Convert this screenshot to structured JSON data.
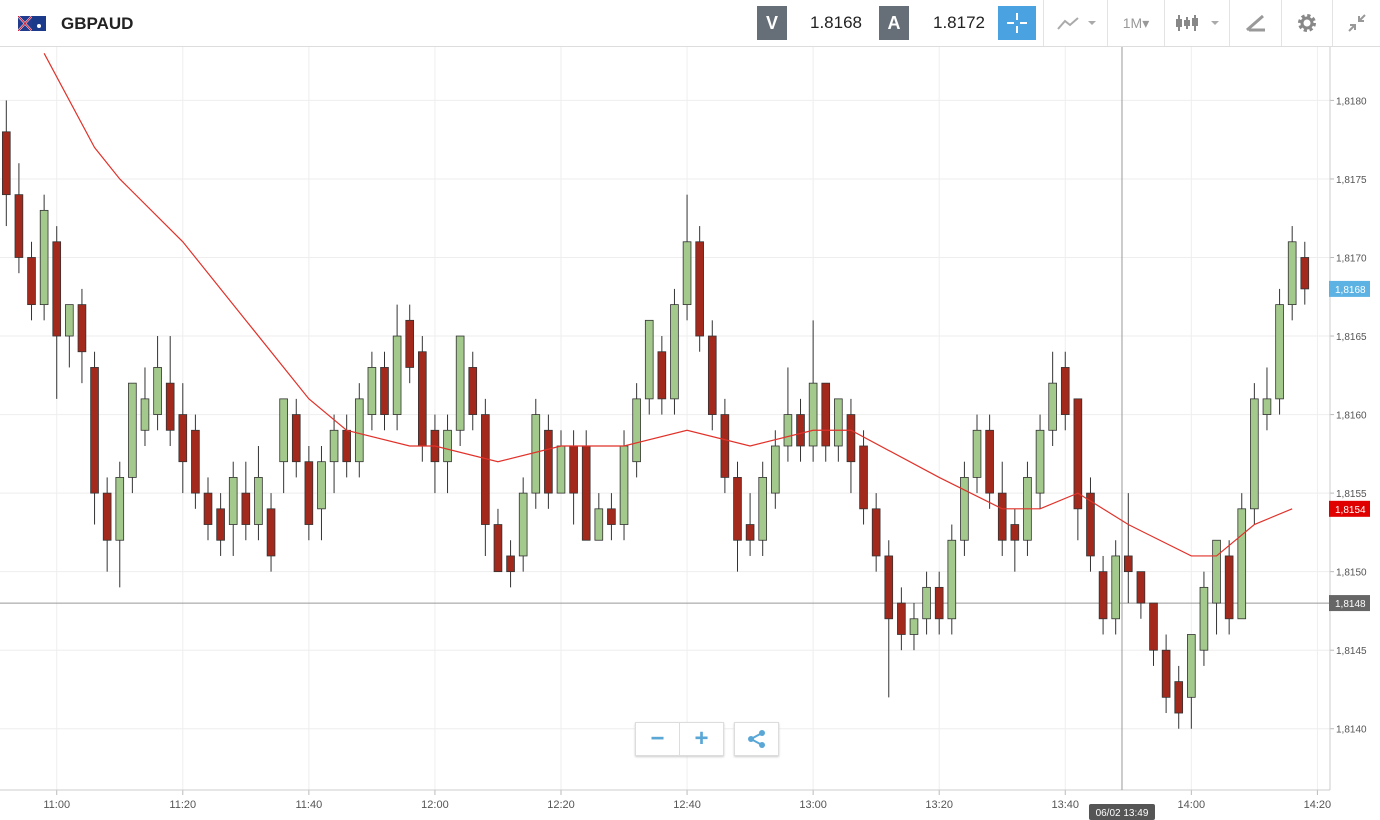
{
  "header": {
    "symbol": "GBPAUD",
    "sell_label": "V",
    "sell_price": "1.8168",
    "buy_label": "A",
    "buy_price": "1.8172",
    "timeframe": "1M"
  },
  "chart_data": {
    "type": "candlestick",
    "x": [
      "10:52",
      "10:54",
      "10:56",
      "10:58",
      "11:00",
      "11:02",
      "11:04",
      "11:06",
      "11:08",
      "11:10",
      "11:12",
      "11:14",
      "11:16",
      "11:18",
      "11:20",
      "11:22",
      "11:24",
      "11:26",
      "11:28",
      "11:30",
      "11:32",
      "11:34",
      "11:36",
      "11:38",
      "11:40",
      "11:42",
      "11:44",
      "11:46",
      "11:48",
      "11:50",
      "11:52",
      "11:54",
      "11:56",
      "11:58",
      "12:00",
      "12:02",
      "12:04",
      "12:06",
      "12:08",
      "12:10",
      "12:12",
      "12:14",
      "12:16",
      "12:18",
      "12:20",
      "12:22",
      "12:24",
      "12:26",
      "12:28",
      "12:30",
      "12:32",
      "12:34",
      "12:36",
      "12:38",
      "12:40",
      "12:42",
      "12:44",
      "12:46",
      "12:48",
      "12:50",
      "12:52",
      "12:54",
      "12:56",
      "12:58",
      "13:00",
      "13:02",
      "13:04",
      "13:06",
      "13:08",
      "13:10",
      "13:12",
      "13:14",
      "13:16",
      "13:18",
      "13:20",
      "13:22",
      "13:24",
      "13:26",
      "13:28",
      "13:30",
      "13:32",
      "13:34",
      "13:36",
      "13:38",
      "13:40",
      "13:42",
      "13:44",
      "13:46",
      "13:48",
      "13:50",
      "13:52",
      "13:54",
      "13:56",
      "13:58",
      "14:00",
      "14:02",
      "14:04",
      "14:06",
      "14:08",
      "14:10",
      "14:12",
      "14:14",
      "14:16",
      "14:18"
    ],
    "ohlc": [
      [
        1.8178,
        1.818,
        1.8172,
        1.8174
      ],
      [
        1.8174,
        1.8176,
        1.8169,
        1.817
      ],
      [
        1.817,
        1.8171,
        1.8166,
        1.8167
      ],
      [
        1.8167,
        1.8174,
        1.8166,
        1.8173
      ],
      [
        1.8171,
        1.8172,
        1.8161,
        1.8165
      ],
      [
        1.8165,
        1.8167,
        1.8163,
        1.8167
      ],
      [
        1.8167,
        1.8168,
        1.8162,
        1.8164
      ],
      [
        1.8163,
        1.8164,
        1.8153,
        1.8155
      ],
      [
        1.8155,
        1.8156,
        1.815,
        1.8152
      ],
      [
        1.8152,
        1.8157,
        1.8149,
        1.8156
      ],
      [
        1.8156,
        1.8162,
        1.8155,
        1.8162
      ],
      [
        1.8159,
        1.8163,
        1.8158,
        1.8161
      ],
      [
        1.816,
        1.8165,
        1.8159,
        1.8163
      ],
      [
        1.8162,
        1.8165,
        1.8158,
        1.8159
      ],
      [
        1.816,
        1.8162,
        1.8155,
        1.8157
      ],
      [
        1.8159,
        1.816,
        1.8154,
        1.8155
      ],
      [
        1.8155,
        1.8156,
        1.8152,
        1.8153
      ],
      [
        1.8154,
        1.8155,
        1.8151,
        1.8152
      ],
      [
        1.8153,
        1.8157,
        1.8151,
        1.8156
      ],
      [
        1.8155,
        1.8157,
        1.8152,
        1.8153
      ],
      [
        1.8153,
        1.8158,
        1.8152,
        1.8156
      ],
      [
        1.8154,
        1.8155,
        1.815,
        1.8151
      ],
      [
        1.8157,
        1.8161,
        1.8155,
        1.8161
      ],
      [
        1.816,
        1.8161,
        1.8156,
        1.8157
      ],
      [
        1.8157,
        1.8158,
        1.8152,
        1.8153
      ],
      [
        1.8154,
        1.8158,
        1.8152,
        1.8157
      ],
      [
        1.8157,
        1.816,
        1.8155,
        1.8159
      ],
      [
        1.8159,
        1.816,
        1.8156,
        1.8157
      ],
      [
        1.8157,
        1.8162,
        1.8156,
        1.8161
      ],
      [
        1.816,
        1.8164,
        1.8159,
        1.8163
      ],
      [
        1.8163,
        1.8164,
        1.8159,
        1.816
      ],
      [
        1.816,
        1.8167,
        1.8159,
        1.8165
      ],
      [
        1.8166,
        1.8167,
        1.8162,
        1.8163
      ],
      [
        1.8164,
        1.8165,
        1.8157,
        1.8158
      ],
      [
        1.8159,
        1.816,
        1.8155,
        1.8157
      ],
      [
        1.8157,
        1.816,
        1.8155,
        1.8159
      ],
      [
        1.8159,
        1.8165,
        1.8158,
        1.8165
      ],
      [
        1.8163,
        1.8164,
        1.8159,
        1.816
      ],
      [
        1.816,
        1.8161,
        1.8151,
        1.8153
      ],
      [
        1.8153,
        1.8154,
        1.815,
        1.815
      ],
      [
        1.8151,
        1.8152,
        1.8149,
        1.815
      ],
      [
        1.8151,
        1.8156,
        1.815,
        1.8155
      ],
      [
        1.8155,
        1.8161,
        1.8154,
        1.816
      ],
      [
        1.8159,
        1.816,
        1.8154,
        1.8155
      ],
      [
        1.8155,
        1.8159,
        1.8155,
        1.8158
      ],
      [
        1.8158,
        1.8159,
        1.8153,
        1.8155
      ],
      [
        1.8158,
        1.8159,
        1.8152,
        1.8152
      ],
      [
        1.8152,
        1.8155,
        1.8152,
        1.8154
      ],
      [
        1.8154,
        1.8155,
        1.8152,
        1.8153
      ],
      [
        1.8153,
        1.8159,
        1.8152,
        1.8158
      ],
      [
        1.8157,
        1.8162,
        1.8156,
        1.8161
      ],
      [
        1.8161,
        1.8166,
        1.816,
        1.8166
      ],
      [
        1.8164,
        1.8165,
        1.816,
        1.8161
      ],
      [
        1.8161,
        1.8168,
        1.816,
        1.8167
      ],
      [
        1.8167,
        1.8174,
        1.8166,
        1.8171
      ],
      [
        1.8171,
        1.8172,
        1.8164,
        1.8165
      ],
      [
        1.8165,
        1.8166,
        1.8159,
        1.816
      ],
      [
        1.816,
        1.8161,
        1.8155,
        1.8156
      ],
      [
        1.8156,
        1.8157,
        1.815,
        1.8152
      ],
      [
        1.8153,
        1.8155,
        1.8151,
        1.8152
      ],
      [
        1.8152,
        1.8157,
        1.8151,
        1.8156
      ],
      [
        1.8155,
        1.8159,
        1.8154,
        1.8158
      ],
      [
        1.8158,
        1.8163,
        1.8157,
        1.816
      ],
      [
        1.816,
        1.8161,
        1.8157,
        1.8158
      ],
      [
        1.8158,
        1.8166,
        1.8157,
        1.8162
      ],
      [
        1.8162,
        1.8162,
        1.8157,
        1.8158
      ],
      [
        1.8158,
        1.8161,
        1.8157,
        1.8161
      ],
      [
        1.816,
        1.8161,
        1.8155,
        1.8157
      ],
      [
        1.8158,
        1.8159,
        1.8153,
        1.8154
      ],
      [
        1.8154,
        1.8155,
        1.815,
        1.8151
      ],
      [
        1.8151,
        1.8152,
        1.8142,
        1.8147
      ],
      [
        1.8148,
        1.8149,
        1.8145,
        1.8146
      ],
      [
        1.8146,
        1.8148,
        1.8145,
        1.8147
      ],
      [
        1.8147,
        1.815,
        1.8146,
        1.8149
      ],
      [
        1.8149,
        1.815,
        1.8146,
        1.8147
      ],
      [
        1.8147,
        1.8153,
        1.8146,
        1.8152
      ],
      [
        1.8152,
        1.8157,
        1.8151,
        1.8156
      ],
      [
        1.8156,
        1.816,
        1.8155,
        1.8159
      ],
      [
        1.8159,
        1.816,
        1.8154,
        1.8155
      ],
      [
        1.8155,
        1.8157,
        1.8151,
        1.8152
      ],
      [
        1.8153,
        1.8154,
        1.815,
        1.8152
      ],
      [
        1.8152,
        1.8157,
        1.8151,
        1.8156
      ],
      [
        1.8155,
        1.816,
        1.8154,
        1.8159
      ],
      [
        1.8159,
        1.8164,
        1.8158,
        1.8162
      ],
      [
        1.8163,
        1.8164,
        1.8159,
        1.816
      ],
      [
        1.8161,
        1.8161,
        1.8152,
        1.8154
      ],
      [
        1.8155,
        1.8156,
        1.815,
        1.8151
      ],
      [
        1.815,
        1.8151,
        1.8146,
        1.8147
      ],
      [
        1.8147,
        1.8152,
        1.8146,
        1.8151
      ],
      [
        1.8151,
        1.8155,
        1.8148,
        1.815
      ],
      [
        1.815,
        1.815,
        1.8147,
        1.8148
      ],
      [
        1.8148,
        1.8148,
        1.8144,
        1.8145
      ],
      [
        1.8145,
        1.8146,
        1.8141,
        1.8142
      ],
      [
        1.8143,
        1.8144,
        1.814,
        1.8141
      ],
      [
        1.8142,
        1.8146,
        1.814,
        1.8146
      ],
      [
        1.8145,
        1.815,
        1.8144,
        1.8149
      ],
      [
        1.8148,
        1.8152,
        1.8146,
        1.8152
      ],
      [
        1.8151,
        1.8152,
        1.8146,
        1.8147
      ],
      [
        1.8147,
        1.8155,
        1.8147,
        1.8154
      ],
      [
        1.8154,
        1.8162,
        1.8153,
        1.8161
      ],
      [
        1.816,
        1.8163,
        1.8159,
        1.8161
      ],
      [
        1.8161,
        1.8168,
        1.816,
        1.8167
      ],
      [
        1.8167,
        1.8172,
        1.8166,
        1.8171
      ],
      [
        1.817,
        1.8171,
        1.8167,
        1.8168
      ]
    ],
    "up_color": "#a4c98c",
    "down_color": "#a3291d",
    "ma": {
      "color": "#e0322a",
      "x": [
        "10:58",
        "11:06",
        "11:10",
        "11:20",
        "11:30",
        "11:40",
        "11:46",
        "11:56",
        "12:00",
        "12:10",
        "12:20",
        "12:30",
        "12:40",
        "12:50",
        "13:00",
        "13:06",
        "13:20",
        "13:30",
        "13:36",
        "13:42",
        "13:50",
        "14:00",
        "14:04",
        "14:10",
        "14:16"
      ],
      "values": [
        1.8183,
        1.8177,
        1.8175,
        1.8171,
        1.8166,
        1.8161,
        1.8159,
        1.8158,
        1.8158,
        1.8157,
        1.8158,
        1.8158,
        1.8159,
        1.8158,
        1.8159,
        1.8159,
        1.8156,
        1.8154,
        1.8154,
        1.8155,
        1.8153,
        1.8151,
        1.8151,
        1.8153,
        1.8154
      ]
    },
    "xlim": [
      "10:51",
      "14:22"
    ],
    "ylim": [
      1.81361,
      1.81834
    ],
    "xticks": [
      "11:00",
      "11:20",
      "11:40",
      "12:00",
      "12:20",
      "12:40",
      "13:00",
      "13:20",
      "13:40",
      "14:00",
      "14:20"
    ],
    "yticks": [
      {
        "value": 1.814,
        "label": "1,8140"
      },
      {
        "value": 1.8145,
        "label": "1,8145"
      },
      {
        "value": 1.815,
        "label": "1,8150"
      },
      {
        "value": 1.8155,
        "label": "1,8155"
      },
      {
        "value": 1.816,
        "label": "1,8160"
      },
      {
        "value": 1.8165,
        "label": "1,8165"
      },
      {
        "value": 1.817,
        "label": "1,8170"
      },
      {
        "value": 1.8175,
        "label": "1,8175"
      },
      {
        "value": 1.818,
        "label": "1,8180"
      }
    ],
    "grid": true,
    "price_tags": [
      {
        "value": 1.8168,
        "label": "1,8168",
        "color": "#5cb3e3"
      },
      {
        "value": 1.8154,
        "label": "1,8154",
        "color": "#e00000"
      },
      {
        "value": 1.8148,
        "label": "1,8148",
        "color": "#666666"
      }
    ],
    "crosshair": {
      "x": {
        "value": "13:49",
        "label": "06/02 13:49"
      },
      "y": 1.8148
    }
  }
}
